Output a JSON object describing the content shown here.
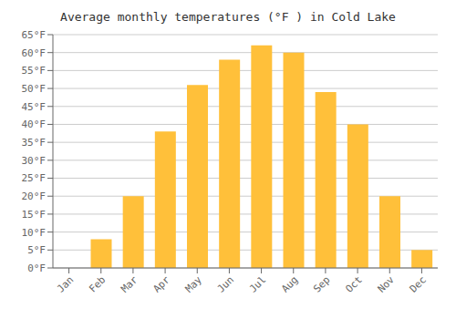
{
  "chart_data": {
    "type": "bar",
    "title": "Average monthly temperatures (°F ) in Cold Lake",
    "categories": [
      "Jan",
      "Feb",
      "Mar",
      "Apr",
      "May",
      "Jun",
      "Jul",
      "Aug",
      "Sep",
      "Oct",
      "Nov",
      "Dec"
    ],
    "values": [
      0,
      8,
      20,
      38,
      51,
      58,
      62,
      60,
      49,
      40,
      20,
      5
    ],
    "color": "#FFC03A",
    "ylim": [
      0,
      65
    ],
    "yticks": [
      {
        "value": 0,
        "label": "0°F"
      },
      {
        "value": 5,
        "label": "5°F"
      },
      {
        "value": 10,
        "label": "10°F"
      },
      {
        "value": 15,
        "label": "15°F"
      },
      {
        "value": 20,
        "label": "20°F"
      },
      {
        "value": 25,
        "label": "25°F"
      },
      {
        "value": 30,
        "label": "30°F"
      },
      {
        "value": 35,
        "label": "35°F"
      },
      {
        "value": 40,
        "label": "40°F"
      },
      {
        "value": 45,
        "label": "45°F"
      },
      {
        "value": 50,
        "label": "50°F"
      },
      {
        "value": 55,
        "label": "55°F"
      },
      {
        "value": 60,
        "label": "60°F"
      },
      {
        "value": 65,
        "label": "65°F"
      }
    ],
    "grid": true
  }
}
